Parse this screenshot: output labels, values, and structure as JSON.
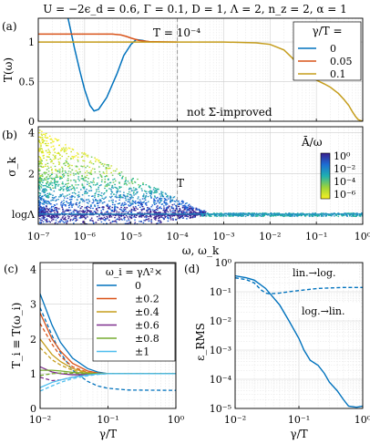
{
  "header": {
    "title": "U = −2ϵ_d = 0.6, Γ = 0.1, D = 1, Λ = 2, n_z = 2, α = 1"
  },
  "colors": {
    "blue": "#0072bd",
    "orange": "#d95319",
    "gold": "#c59d1c",
    "purple": "#7e2f8e",
    "green": "#77ac30",
    "cyan": "#4dbeee",
    "vline": "#999999"
  },
  "chart_data": [
    {
      "id": "a",
      "panel_label": "(a)",
      "type": "line",
      "ylabel": "T(ω)",
      "xscale": "log",
      "xlim": [
        1e-07,
        1
      ],
      "ylim": [
        0,
        1.3
      ],
      "yticks": [
        "0",
        "0.5",
        "1"
      ],
      "annotations": {
        "temperature": "T = 10⁻⁴",
        "note": "not Σ-improved"
      },
      "vline_x": 0.0001,
      "legend": {
        "title": "γ/T =",
        "placement": "top-right"
      },
      "series": [
        {
          "name": "0",
          "color": "blue",
          "points": [
            [
              4.2e-07,
              1.35
            ],
            [
              5e-07,
              1.15
            ],
            [
              6e-07,
              0.93
            ],
            [
              8e-07,
              0.62
            ],
            [
              1e-06,
              0.4
            ],
            [
              1.3e-06,
              0.2
            ],
            [
              1.6e-06,
              0.13
            ],
            [
              2e-06,
              0.15
            ],
            [
              3e-06,
              0.3
            ],
            [
              5e-06,
              0.6
            ],
            [
              7e-06,
              0.83
            ],
            [
              1e-05,
              0.97
            ],
            [
              1.3e-05,
              1.03
            ],
            [
              1.8e-05,
              1.02
            ],
            [
              2.5e-05,
              1.0
            ]
          ]
        },
        {
          "name": "0.05",
          "color": "orange",
          "points": [
            [
              1e-07,
              1.1
            ],
            [
              4e-06,
              1.1
            ],
            [
              6e-06,
              1.09
            ],
            [
              8e-06,
              1.07
            ],
            [
              1e-05,
              1.05
            ],
            [
              1.5e-05,
              1.02
            ],
            [
              2.5e-05,
              1.005
            ],
            [
              0.0001,
              1.0
            ]
          ]
        },
        {
          "name": "0.1",
          "color": "gold",
          "points": [
            [
              1e-07,
              1.0
            ],
            [
              0.0001,
              1.0
            ],
            [
              0.001,
              1.0
            ],
            [
              0.005,
              0.99
            ],
            [
              0.01,
              0.97
            ],
            [
              0.02,
              0.9
            ],
            [
              0.03,
              0.8
            ],
            [
              0.05,
              0.66
            ],
            [
              0.07,
              0.58
            ],
            [
              0.1,
              0.52
            ],
            [
              0.15,
              0.47
            ],
            [
              0.2,
              0.43
            ],
            [
              0.3,
              0.35
            ],
            [
              0.4,
              0.27
            ],
            [
              0.5,
              0.2
            ],
            [
              0.6,
              0.12
            ],
            [
              0.7,
              0.06
            ],
            [
              0.8,
              0.02
            ],
            [
              1,
              0.0
            ]
          ]
        }
      ]
    },
    {
      "id": "b",
      "panel_label": "(b)",
      "type": "heatmap",
      "xlabel": "ω, ω_k",
      "ylabel": "σ_k",
      "xscale": "log",
      "xlim": [
        1e-07,
        1
      ],
      "ylim": [
        -0.5,
        4.3
      ],
      "yticks": [
        "logΛ",
        "2",
        "4"
      ],
      "annotations": {
        "temperature": "T"
      },
      "vline_x": 0.0001,
      "colorbar": {
        "title": "Ā/ω",
        "scale": "log",
        "ticks": [
          "10⁰",
          "10⁻²",
          "10⁻⁴",
          "10⁻⁶"
        ]
      },
      "baseline_sigma": "logΛ"
    },
    {
      "id": "c",
      "panel_label": "(c)",
      "type": "line",
      "xlabel": "γ/T",
      "ylabel": "T_i ≡ T(ω_i)",
      "xscale": "log",
      "xlim": [
        0.01,
        1
      ],
      "ylim": [
        0,
        4.2
      ],
      "legend": {
        "title": "ω_i = γΛ²×",
        "placement": "top-right"
      },
      "series": [
        {
          "name": "0",
          "color": "blue",
          "solid": [
            [
              0.01,
              3.3
            ],
            [
              0.015,
              2.4
            ],
            [
              0.02,
              1.9
            ],
            [
              0.03,
              1.45
            ],
            [
              0.05,
              1.15
            ],
            [
              0.07,
              1.05
            ],
            [
              0.1,
              1.0
            ],
            [
              1,
              1.0
            ]
          ],
          "dashed": [
            [
              0.01,
              2.9
            ],
            [
              0.015,
              2.1
            ],
            [
              0.02,
              1.6
            ],
            [
              0.03,
              1.1
            ],
            [
              0.05,
              0.78
            ],
            [
              0.07,
              0.65
            ],
            [
              0.1,
              0.58
            ],
            [
              0.2,
              0.53
            ],
            [
              1,
              0.52
            ]
          ]
        },
        {
          "name": "±0.2",
          "color": "orange",
          "solid": [
            [
              0.01,
              2.75
            ],
            [
              0.015,
              2.0
            ],
            [
              0.02,
              1.65
            ],
            [
              0.03,
              1.3
            ],
            [
              0.05,
              1.08
            ],
            [
              0.07,
              1.02
            ],
            [
              0.1,
              1.0
            ],
            [
              1,
              1.0
            ]
          ],
          "dashed": [
            [
              0.01,
              2.45
            ],
            [
              0.015,
              1.85
            ],
            [
              0.02,
              1.5
            ],
            [
              0.03,
              1.2
            ],
            [
              0.05,
              1.04
            ],
            [
              0.07,
              1.0
            ],
            [
              1,
              1.0
            ]
          ]
        },
        {
          "name": "±0.4",
          "color": "gold",
          "solid": [
            [
              0.01,
              2.0
            ],
            [
              0.015,
              1.55
            ],
            [
              0.02,
              1.35
            ],
            [
              0.03,
              1.15
            ],
            [
              0.05,
              1.03
            ],
            [
              0.07,
              1.0
            ],
            [
              1,
              1.0
            ]
          ],
          "dashed": [
            [
              0.01,
              1.75
            ],
            [
              0.015,
              1.4
            ],
            [
              0.02,
              1.25
            ],
            [
              0.03,
              1.1
            ],
            [
              0.05,
              1.01
            ],
            [
              1,
              1.0
            ]
          ]
        },
        {
          "name": "±0.6",
          "color": "purple",
          "solid": [
            [
              0.01,
              1.2
            ],
            [
              0.015,
              1.05
            ],
            [
              0.02,
              1.0
            ],
            [
              0.03,
              0.97
            ],
            [
              0.05,
              0.98
            ],
            [
              0.07,
              1.0
            ],
            [
              1,
              1.0
            ]
          ],
          "dashed": [
            [
              0.01,
              0.9
            ],
            [
              0.015,
              0.8
            ],
            [
              0.02,
              0.82
            ],
            [
              0.03,
              0.9
            ],
            [
              0.05,
              0.97
            ],
            [
              0.07,
              1.0
            ],
            [
              1,
              1.0
            ]
          ]
        },
        {
          "name": "±0.8",
          "color": "green",
          "solid": [
            [
              0.01,
              1.1
            ],
            [
              0.015,
              1.1
            ],
            [
              0.02,
              1.08
            ],
            [
              0.03,
              1.04
            ],
            [
              0.05,
              1.01
            ],
            [
              0.1,
              1.0
            ],
            [
              1,
              1.0
            ]
          ],
          "dashed": [
            [
              0.01,
              0.95
            ],
            [
              0.015,
              1.0
            ],
            [
              0.02,
              1.02
            ],
            [
              0.03,
              1.01
            ],
            [
              0.05,
              1.0
            ],
            [
              1,
              1.0
            ]
          ]
        },
        {
          "name": "±1",
          "color": "cyan",
          "solid": [
            [
              0.01,
              0.6
            ],
            [
              0.015,
              0.75
            ],
            [
              0.02,
              0.82
            ],
            [
              0.03,
              0.9
            ],
            [
              0.05,
              0.96
            ],
            [
              0.07,
              0.99
            ],
            [
              0.1,
              1.0
            ],
            [
              1,
              1.0
            ]
          ],
          "dashed": [
            [
              0.01,
              0.5
            ],
            [
              0.015,
              0.65
            ],
            [
              0.02,
              0.75
            ],
            [
              0.03,
              0.86
            ],
            [
              0.05,
              0.94
            ],
            [
              0.07,
              0.98
            ],
            [
              0.1,
              1.0
            ],
            [
              1,
              1.0
            ]
          ]
        }
      ]
    },
    {
      "id": "d",
      "panel_label": "(d)",
      "type": "line",
      "xlabel": "γ/T",
      "ylabel": "ε_RMS",
      "xscale": "log",
      "yscale": "log",
      "xlim": [
        0.01,
        1
      ],
      "ylim": [
        1e-05,
        1
      ],
      "annotations": {
        "lin_to_log": "lin.→log.",
        "log_to_lin": "log.→lin."
      },
      "series": [
        {
          "name": "lin.→log.",
          "color": "blue",
          "style": "dashed",
          "points": [
            [
              0.01,
              0.3
            ],
            [
              0.015,
              0.26
            ],
            [
              0.02,
              0.2
            ],
            [
              0.025,
              0.12
            ],
            [
              0.03,
              0.09
            ],
            [
              0.035,
              0.085
            ],
            [
              0.05,
              0.09
            ],
            [
              0.07,
              0.1
            ],
            [
              0.1,
              0.11
            ],
            [
              0.2,
              0.13
            ],
            [
              0.5,
              0.14
            ],
            [
              1,
              0.14
            ]
          ]
        },
        {
          "name": "log.→lin.",
          "color": "blue",
          "style": "solid",
          "points": [
            [
              0.01,
              0.35
            ],
            [
              0.015,
              0.3
            ],
            [
              0.02,
              0.25
            ],
            [
              0.03,
              0.13
            ],
            [
              0.05,
              0.035
            ],
            [
              0.07,
              0.01
            ],
            [
              0.1,
              0.0025
            ],
            [
              0.12,
              0.001
            ],
            [
              0.15,
              0.00045
            ],
            [
              0.2,
              0.0003
            ],
            [
              0.25,
              0.00016
            ],
            [
              0.3,
              8e-05
            ],
            [
              0.4,
              4e-05
            ],
            [
              0.5,
              2e-05
            ],
            [
              0.6,
              1.2e-05
            ],
            [
              0.8,
              1.1e-05
            ],
            [
              1,
              1.2e-05
            ]
          ]
        }
      ]
    }
  ]
}
